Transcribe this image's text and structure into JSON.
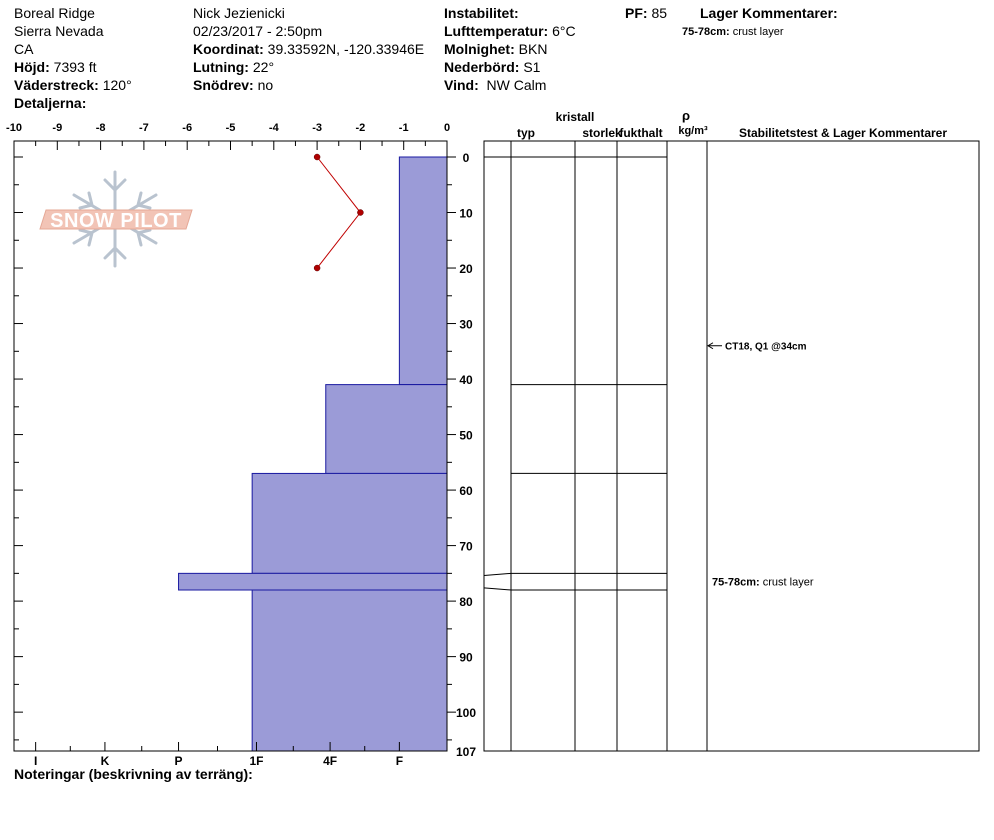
{
  "header": {
    "location": "Boreal Ridge",
    "range": "Sierra Nevada",
    "state": "CA",
    "elevation_label": "Höjd:",
    "elevation": "7393 ft",
    "aspect_label": "Väderstreck:",
    "aspect": "120°",
    "details_label": "Detaljerna:",
    "observer": "Nick Jezienicki",
    "datetime": "02/23/2017 - 2:50pm",
    "coord_label": "Koordinat:",
    "coord": "39.33592N, -120.33946E",
    "slope_label": "Lutning:",
    "slope": "22°",
    "drift_label": "Snödrev:",
    "drift": "no",
    "instability_label": "Instabilitet:",
    "airtemp_label": "Lufttemperatur:",
    "airtemp": "6°C",
    "cloud_label": "Molnighet:",
    "cloud": "BKN",
    "precip_label": "Nederbörd:",
    "precip": "S1",
    "wind_label": "Vind:",
    "wind": "NW Calm",
    "pf_label": "PF:",
    "pf": "85",
    "layer_comments_label": "Lager Kommentarer:",
    "layer_comment_depth": "75-78cm:",
    "layer_comment_text": "crust layer"
  },
  "table_headers": {
    "crystal": "kristall",
    "type": "typ",
    "size": "storlek",
    "moisture": "fukthalt",
    "rho": "ρ",
    "density_unit": "kg/m³",
    "stability": "Stabilitetstest & Lager Kommentarer"
  },
  "logo_text": "SNOW PILOT",
  "notes_label": "Noteringar (beskrivning av terräng):",
  "chart_data": {
    "type": "bar",
    "top_axis": {
      "ticks": [
        -10,
        -9,
        -8,
        -7,
        -6,
        -5,
        -4,
        -3,
        -2,
        -1,
        0
      ],
      "range": [
        -10,
        0
      ]
    },
    "depth_axis": {
      "ticks": [
        0,
        10,
        20,
        30,
        40,
        50,
        60,
        70,
        80,
        90,
        100,
        107
      ],
      "range": [
        0,
        107
      ]
    },
    "hardness_labels": [
      "I",
      "K",
      "P",
      "1F",
      "4F",
      "F"
    ],
    "hardness_positions": [
      -9.5,
      -7.9,
      -6.2,
      -4.4,
      -2.7,
      -1.1
    ],
    "layers": [
      {
        "top": 0,
        "bottom": 41,
        "hardness": -1.1
      },
      {
        "top": 41,
        "bottom": 57,
        "hardness": -2.8
      },
      {
        "top": 57,
        "bottom": 75,
        "hardness": -4.5
      },
      {
        "top": 75,
        "bottom": 78,
        "hardness": -6.2
      },
      {
        "top": 78,
        "bottom": 107,
        "hardness": -4.5
      }
    ],
    "temperature_profile": [
      {
        "depth": 0,
        "temp": -3
      },
      {
        "depth": 10,
        "temp": -2
      },
      {
        "depth": 20,
        "temp": -3
      }
    ],
    "stability_tests": [
      {
        "depth": 34,
        "label": "CT18, Q1 @34cm"
      }
    ],
    "layer_comments": [
      {
        "depth": 76.5,
        "depth_text": "75-78cm:",
        "text": "crust layer"
      }
    ],
    "colors": {
      "bar_fill": "#9b9bd7",
      "bar_stroke": "#1a1aa0",
      "temp_line": "#c00000",
      "temp_point": "#b00000"
    }
  }
}
